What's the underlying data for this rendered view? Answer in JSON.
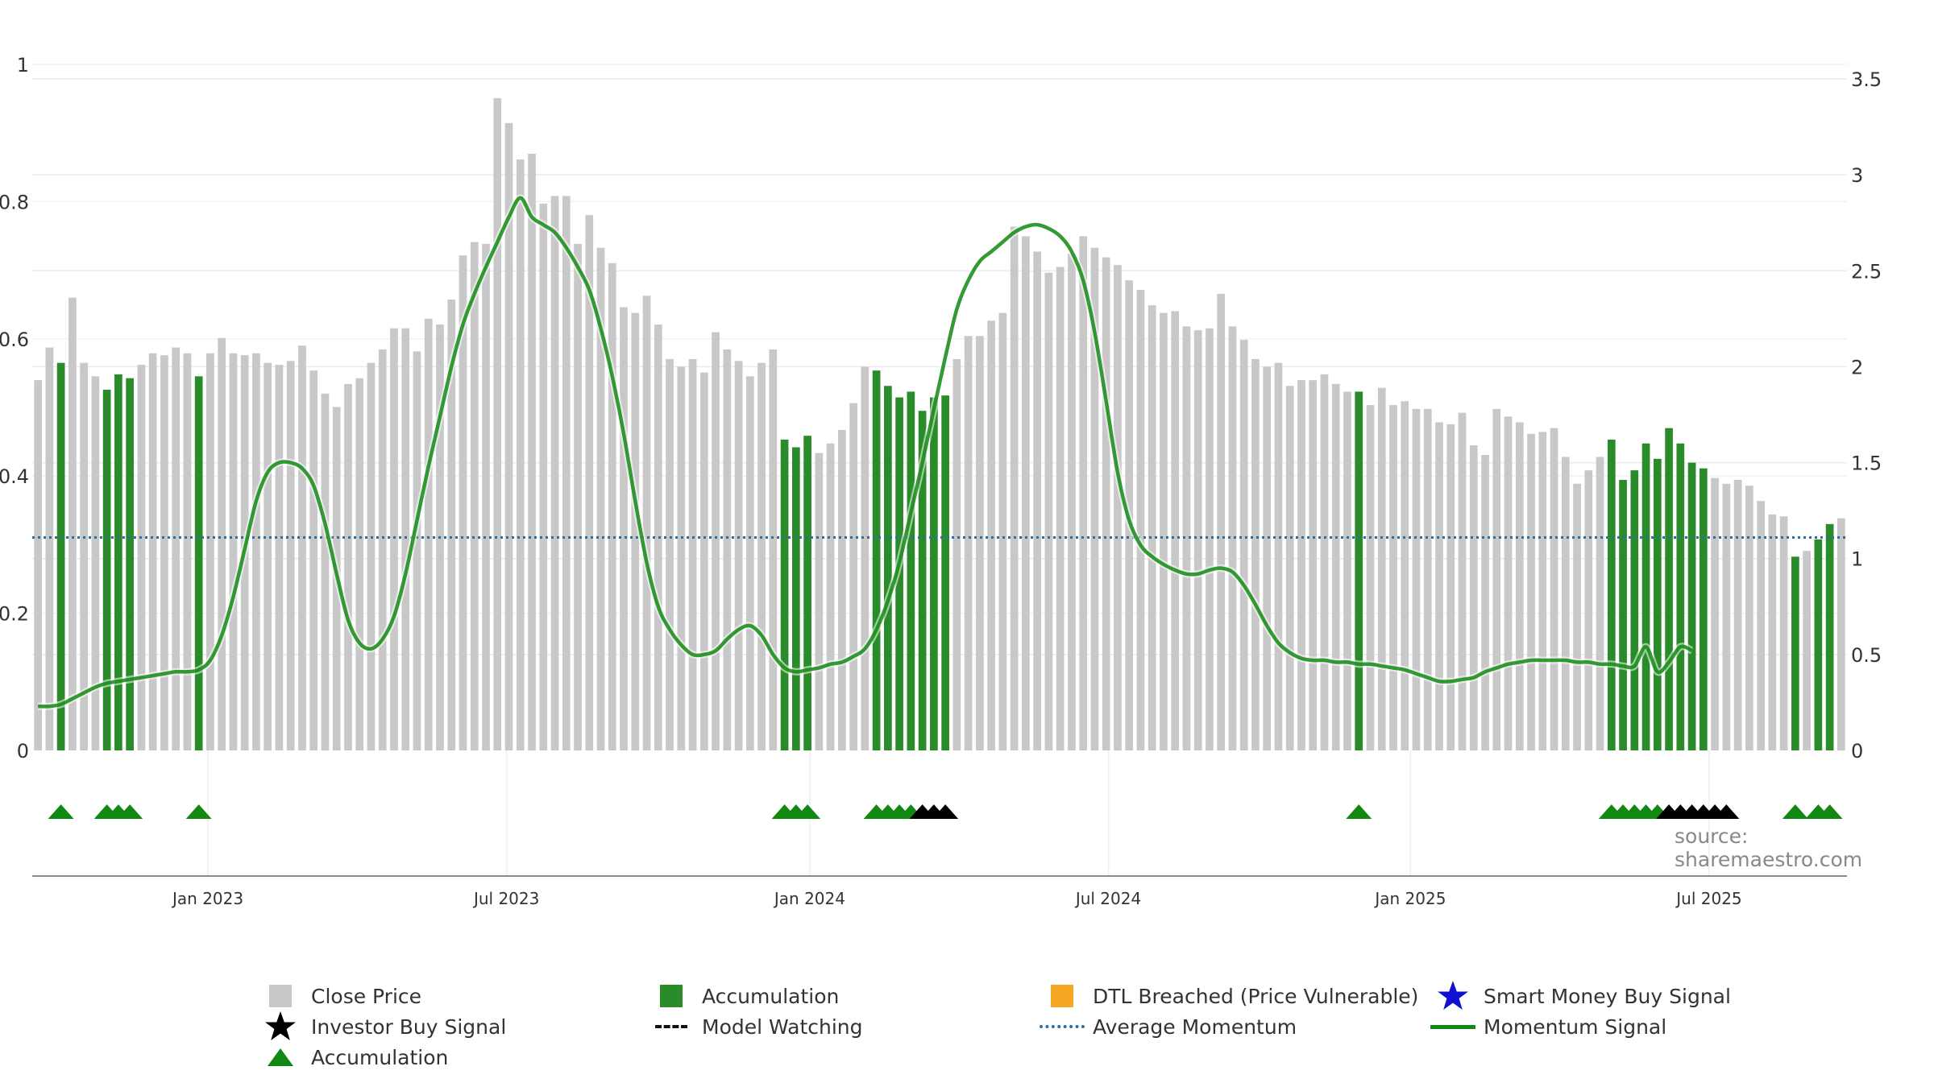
{
  "source": "source: sharemaestro.com",
  "colors": {
    "close_price": "#c8c8c8",
    "accumulation": "#2a8b2a",
    "dtl_breached": "#f5a623",
    "smart_money": "#1010d0",
    "investor_buy": "#000000",
    "average_momentum": "#2e6e9e",
    "momentum": "#118811"
  },
  "legend": [
    {
      "label": "Close Price",
      "symbol": "gray-square"
    },
    {
      "label": "Accumulation",
      "symbol": "green-square"
    },
    {
      "label": "DTL Breached (Price Vulnerable)",
      "symbol": "orange-square"
    },
    {
      "label": "Smart Money Buy Signal",
      "symbol": "blue-star"
    },
    {
      "label": "Investor Buy Signal",
      "symbol": "black-star"
    },
    {
      "label": "Model Watching",
      "symbol": "black-dash"
    },
    {
      "label": "Average Momentum",
      "symbol": "blue-dotted-line"
    },
    {
      "label": "Momentum Signal",
      "symbol": "green-line"
    },
    {
      "label": "Accumulation",
      "symbol": "green-triangle"
    }
  ],
  "chart_data": {
    "type": "bar",
    "x_axis": {
      "ticks": [
        "Jan 2023",
        "Jul 2023",
        "Jan 2024",
        "Jul 2024",
        "Jan 2025",
        "Jul 2025"
      ],
      "tick_weeks": [
        15.3,
        41.3,
        67.7,
        93.7,
        120,
        146
      ]
    },
    "y_left": {
      "range": [
        0,
        1
      ],
      "ticks": [
        "0",
        "0.2",
        "0.4",
        "0.6",
        "0.8",
        "1"
      ]
    },
    "y_right": {
      "range": [
        0,
        3.5
      ],
      "ticks": [
        "0",
        "0.5",
        "1",
        "1.5",
        "2",
        "2.5",
        "3",
        "3.5"
      ]
    },
    "grid": true,
    "legend_position": "bottom",
    "close_price": [
      1.93,
      2.1,
      2.02,
      2.36,
      2.02,
      1.95,
      1.88,
      1.96,
      1.94,
      2.01,
      2.07,
      2.06,
      2.1,
      2.07,
      1.95,
      2.07,
      2.15,
      2.07,
      2.06,
      2.07,
      2.02,
      2.01,
      2.03,
      2.11,
      1.98,
      1.86,
      1.79,
      1.91,
      1.94,
      2.02,
      2.09,
      2.2,
      2.2,
      2.08,
      2.25,
      2.22,
      2.35,
      2.58,
      2.65,
      2.64,
      3.4,
      3.27,
      3.08,
      3.11,
      2.85,
      2.89,
      2.89,
      2.64,
      2.79,
      2.62,
      2.54,
      2.31,
      2.28,
      2.37,
      2.22,
      2.04,
      2.0,
      2.04,
      1.97,
      2.18,
      2.09,
      2.03,
      1.95,
      2.02,
      2.09,
      1.62,
      1.58,
      1.64,
      1.55,
      1.6,
      1.67,
      1.81,
      2.0,
      1.98,
      1.9,
      1.84,
      1.87,
      1.77,
      1.84,
      1.85,
      2.04,
      2.16,
      2.16,
      2.24,
      2.28,
      2.73,
      2.68,
      2.6,
      2.49,
      2.52,
      2.59,
      2.68,
      2.62,
      2.57,
      2.53,
      2.45,
      2.4,
      2.32,
      2.28,
      2.29,
      2.21,
      2.19,
      2.2,
      2.38,
      2.21,
      2.14,
      2.04,
      2.0,
      2.02,
      1.9,
      1.93,
      1.93,
      1.96,
      1.91,
      1.87,
      1.87,
      1.8,
      1.89,
      1.8,
      1.82,
      1.78,
      1.78,
      1.71,
      1.7,
      1.76,
      1.59,
      1.54,
      1.78,
      1.74,
      1.71,
      1.65,
      1.66,
      1.68,
      1.53,
      1.39,
      1.46,
      1.53,
      1.62,
      1.41,
      1.46,
      1.6,
      1.52,
      1.68,
      1.6,
      1.5,
      1.47,
      1.42,
      1.39,
      1.41,
      1.38,
      1.3,
      1.23,
      1.22,
      1.01,
      1.04,
      1.1,
      1.18,
      1.21
    ],
    "accumulation_weeks": [
      2,
      6,
      7,
      8,
      14,
      65,
      66,
      67,
      73,
      74,
      75,
      76,
      77,
      78,
      79,
      115,
      137,
      138,
      139,
      140,
      141,
      142,
      143,
      144,
      145,
      153,
      155,
      156
    ],
    "momentum": [
      0.23,
      0.23,
      0.24,
      0.27,
      0.3,
      0.33,
      0.35,
      0.36,
      0.37,
      0.38,
      0.39,
      0.4,
      0.41,
      0.41,
      0.42,
      0.47,
      0.6,
      0.8,
      1.05,
      1.3,
      1.45,
      1.5,
      1.5,
      1.47,
      1.38,
      1.18,
      0.92,
      0.68,
      0.56,
      0.53,
      0.58,
      0.7,
      0.92,
      1.2,
      1.48,
      1.74,
      2.0,
      2.22,
      2.38,
      2.52,
      2.65,
      2.78,
      2.88,
      2.78,
      2.74,
      2.7,
      2.62,
      2.52,
      2.4,
      2.2,
      1.95,
      1.65,
      1.3,
      0.98,
      0.75,
      0.63,
      0.55,
      0.5,
      0.5,
      0.52,
      0.58,
      0.63,
      0.65,
      0.6,
      0.5,
      0.43,
      0.41,
      0.42,
      0.43,
      0.45,
      0.46,
      0.49,
      0.53,
      0.63,
      0.78,
      0.98,
      1.24,
      1.5,
      1.78,
      2.05,
      2.3,
      2.45,
      2.55,
      2.6,
      2.65,
      2.7,
      2.73,
      2.74,
      2.72,
      2.68,
      2.6,
      2.45,
      2.18,
      1.82,
      1.45,
      1.2,
      1.07,
      1.01,
      0.97,
      0.94,
      0.92,
      0.92,
      0.94,
      0.95,
      0.93,
      0.86,
      0.76,
      0.65,
      0.56,
      0.51,
      0.48,
      0.47,
      0.47,
      0.46,
      0.46,
      0.45,
      0.45,
      0.44,
      0.43,
      0.42,
      0.4,
      0.38,
      0.36,
      0.36,
      0.37,
      0.38,
      0.41,
      0.43,
      0.45,
      0.46,
      0.47,
      0.47,
      0.47,
      0.47,
      0.46,
      0.46,
      0.45,
      0.45,
      0.44,
      0.44,
      0.54,
      0.41,
      0.46,
      0.54,
      0.52
    ],
    "average_momentum": 1.11,
    "signals": {
      "accumulation_triangles": [
        2,
        6,
        7,
        8,
        14,
        65,
        66,
        67,
        73,
        74,
        75,
        76,
        115,
        137,
        138,
        139,
        140,
        141,
        153,
        155,
        156
      ],
      "investor_buy_triangles": [
        77,
        78,
        79,
        142,
        143,
        144,
        145,
        146,
        147
      ]
    }
  }
}
